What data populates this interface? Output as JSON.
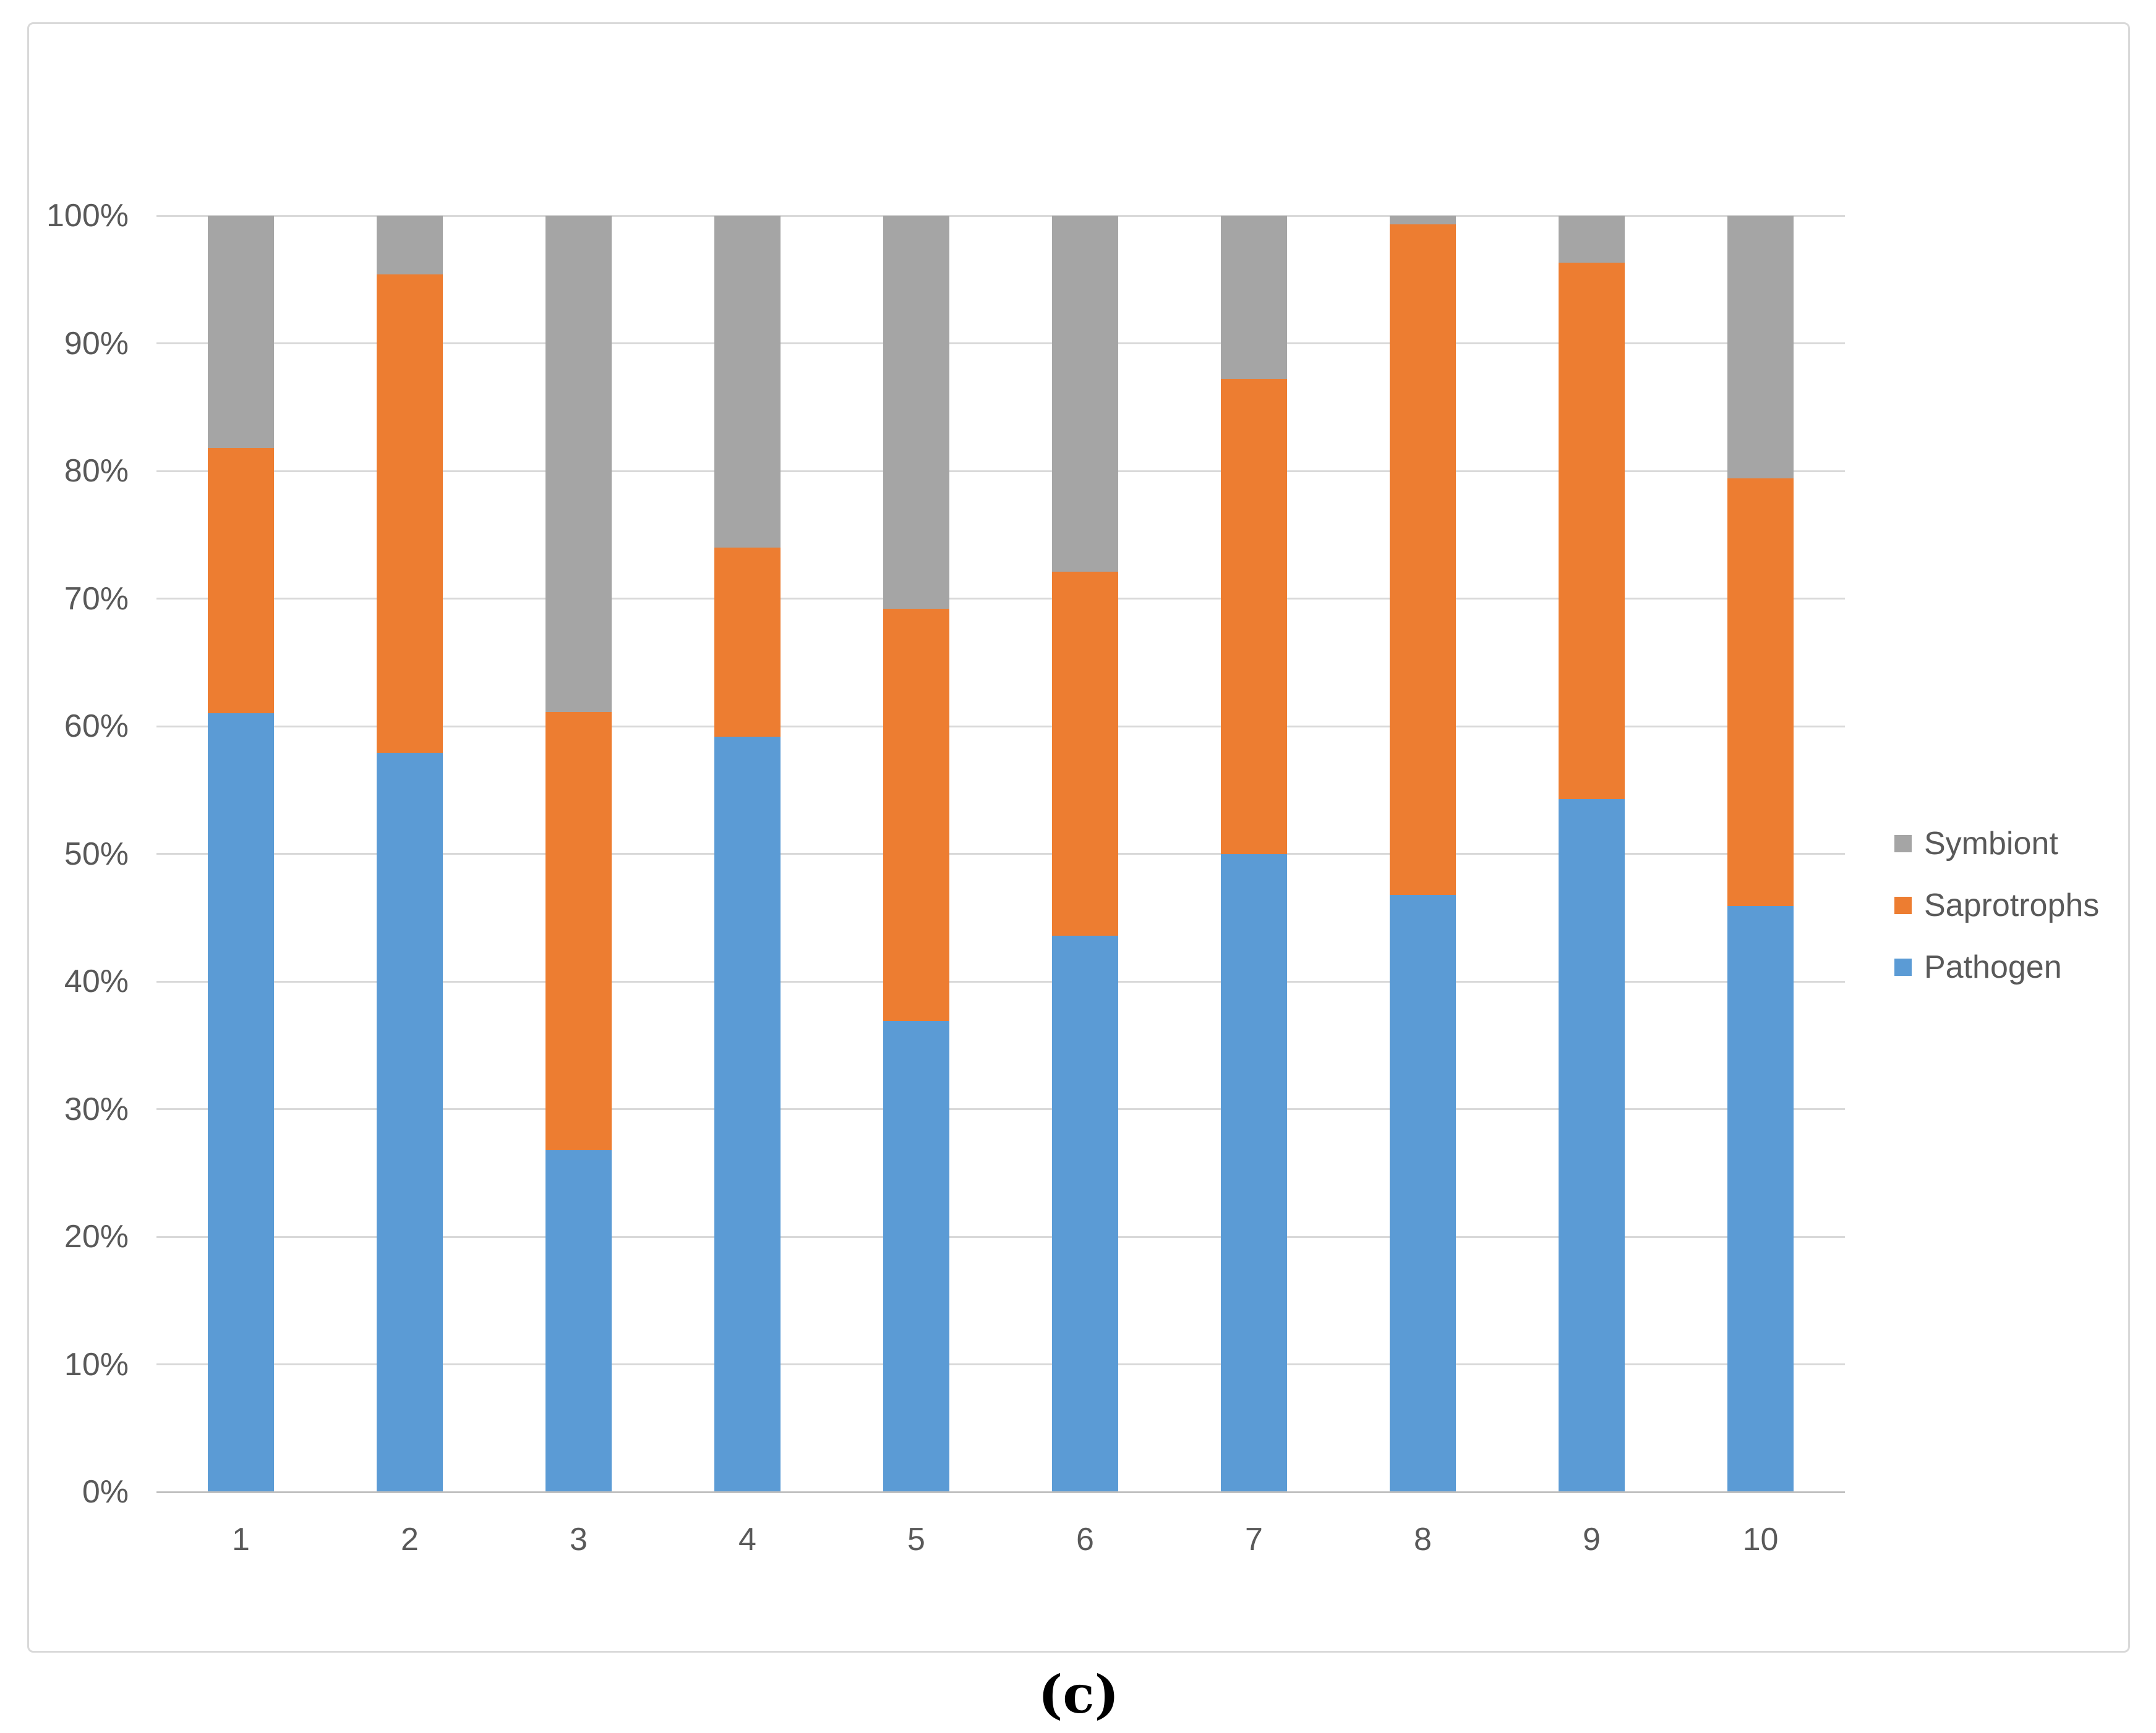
{
  "figure": {
    "caption": "(c)"
  },
  "colors": {
    "pathogen": "#5B9BD5",
    "saprotrophs": "#ED7D31",
    "symbiont": "#A5A5A5",
    "gridline": "#D9D9D9",
    "axis_line": "#BFBFBF",
    "label_text": "#595959"
  },
  "chart_data": {
    "type": "bar",
    "stacked": true,
    "percent_stacked": true,
    "title": "",
    "xlabel": "",
    "ylabel": "",
    "ylim": [
      0,
      100
    ],
    "grid": true,
    "categories": [
      "1",
      "2",
      "3",
      "4",
      "5",
      "6",
      "7",
      "8",
      "9",
      "10"
    ],
    "series": [
      {
        "name": "Pathogen",
        "color_key": "pathogen",
        "values": [
          61.0,
          57.9,
          26.8,
          59.2,
          36.9,
          43.6,
          50.0,
          46.8,
          54.3,
          45.9
        ]
      },
      {
        "name": "Saprotrophs",
        "color_key": "saprotrophs",
        "values": [
          20.8,
          37.5,
          34.3,
          14.8,
          32.3,
          28.5,
          37.2,
          52.5,
          42.0,
          33.5
        ]
      },
      {
        "name": "Symbiont",
        "color_key": "symbiont",
        "values": [
          18.2,
          4.6,
          38.9,
          26.0,
          30.8,
          27.9,
          12.8,
          0.7,
          3.7,
          20.6
        ]
      }
    ],
    "y_ticks": [
      "0%",
      "10%",
      "20%",
      "30%",
      "40%",
      "50%",
      "60%",
      "70%",
      "80%",
      "90%",
      "100%"
    ],
    "legend": {
      "position": "right",
      "items": [
        "Symbiont",
        "Saprotrophs",
        "Pathogen"
      ]
    }
  }
}
